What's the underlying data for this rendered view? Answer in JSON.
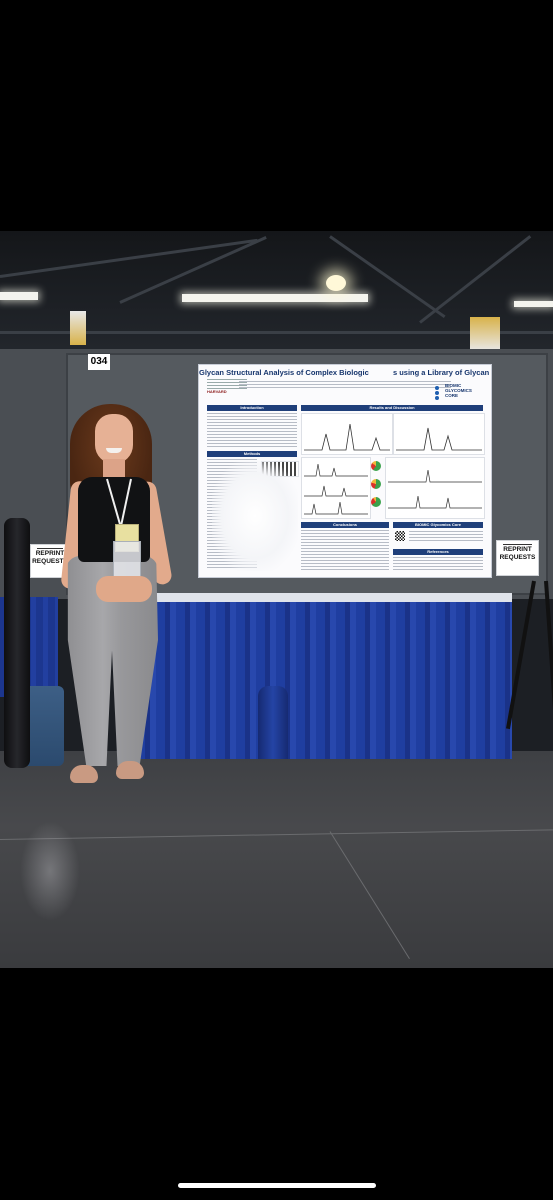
{
  "photo": {
    "description_free": true,
    "board_number": "034",
    "poster": {
      "title": "Glycan Structural Analysis of Complex Biologic... using a Library of Glycan Standards",
      "title_left": "Glycan Structural Analysis of Complex Biologic",
      "title_right": "s using a Library of Glycan Standards",
      "institution_logo": "HARVARD",
      "lab_logo": [
        "BIOMIC",
        "GLYCOMICS",
        "CORE"
      ],
      "section_headers": {
        "introduction": "Introduction",
        "results": "Results and Discussion",
        "methods": "Methods",
        "conclusions": "Conclusions",
        "core": "BIOMIC Glycomics Core",
        "references": "References"
      }
    },
    "reprint_signs": [
      {
        "line1": "REPRINT",
        "line2": "REQUESTS"
      },
      {
        "line1": "REPRINT",
        "line2": "REQUESTS"
      }
    ],
    "colors": {
      "table_skirt": "#1f3ea0",
      "poster_header": "#1f3f7a",
      "floor": "#45464a"
    }
  }
}
